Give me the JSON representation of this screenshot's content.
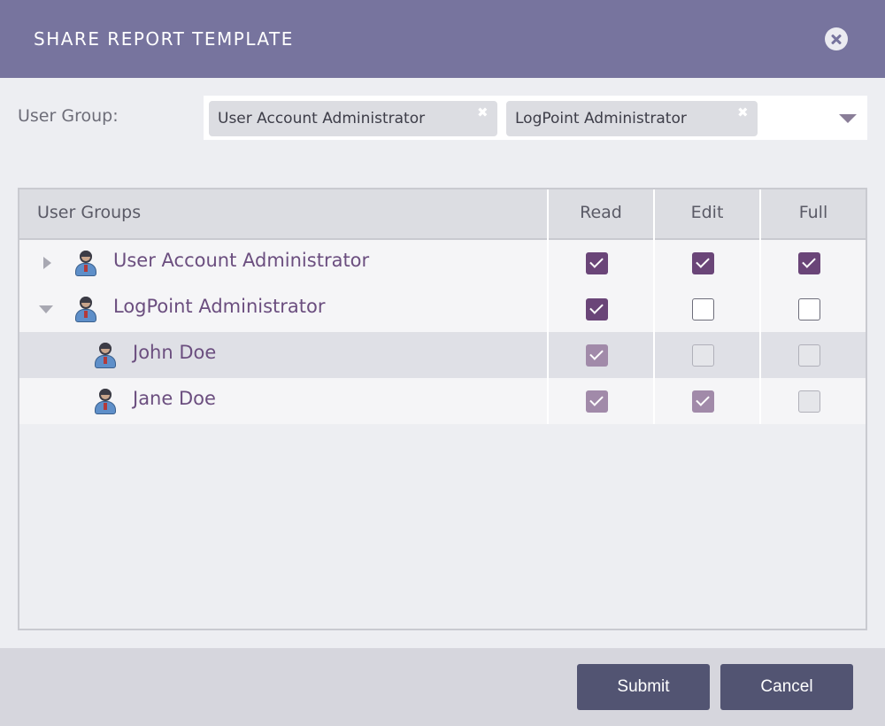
{
  "dialog": {
    "title": "SHARE REPORT TEMPLATE",
    "close_icon": "close-icon"
  },
  "user_group_field": {
    "label": "User Group:",
    "selected": [
      "User Account Administrator",
      "LogPoint Administrator"
    ],
    "remove_glyph": "✖",
    "dropdown_icon": "chevron-down-icon"
  },
  "grid": {
    "columns": [
      "User Groups",
      "Read",
      "Edit",
      "Full"
    ],
    "rows": [
      {
        "name": "User Account Administrator",
        "level": 0,
        "expand_state": "collapsed",
        "icon": "user-icon",
        "read": true,
        "edit": true,
        "full": true,
        "enabled": true
      },
      {
        "name": "LogPoint Administrator",
        "level": 0,
        "expand_state": "expanded",
        "icon": "user-icon",
        "read": true,
        "edit": false,
        "full": false,
        "enabled": true
      },
      {
        "name": "John Doe",
        "level": 1,
        "icon": "user-icon",
        "read": true,
        "edit": false,
        "full": false,
        "enabled": false
      },
      {
        "name": "Jane Doe",
        "level": 1,
        "icon": "user-icon",
        "read": true,
        "edit": true,
        "full": false,
        "enabled": false
      }
    ]
  },
  "footer": {
    "submit_label": "Submit",
    "cancel_label": "Cancel"
  },
  "colors": {
    "header_bg": "#77749e",
    "accent": "#6a4578",
    "button_bg": "#525472"
  }
}
